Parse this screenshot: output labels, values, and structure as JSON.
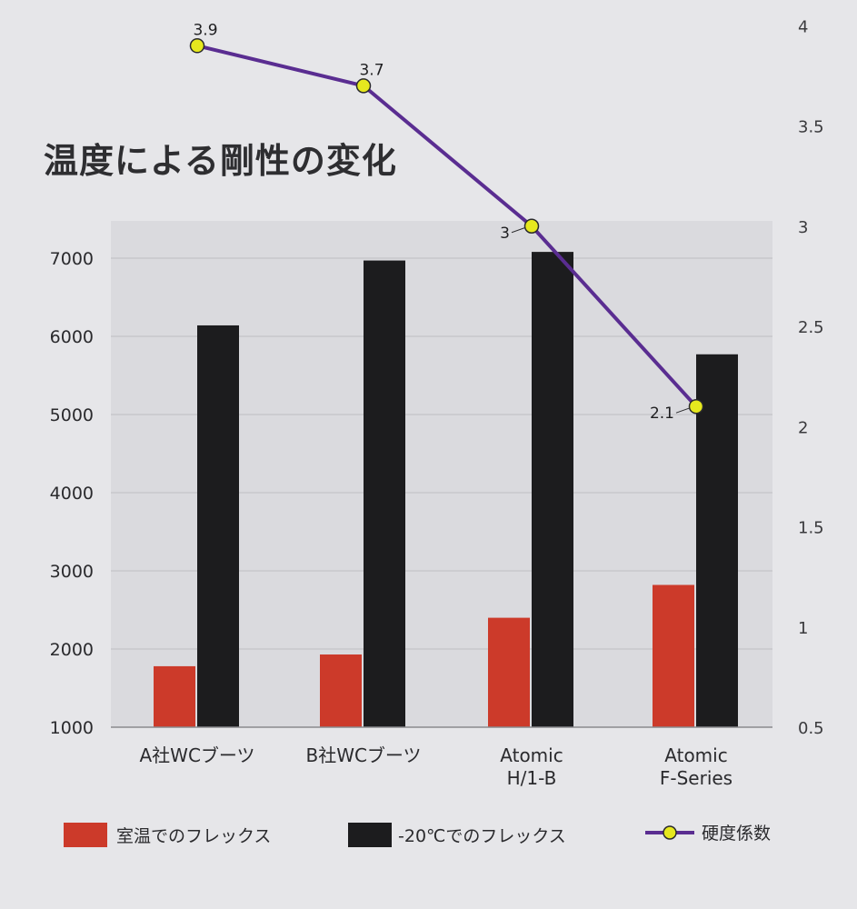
{
  "chart_data": {
    "type": "bar",
    "title": "温度による剛性の変化",
    "categories": [
      [
        "A社WCブーツ"
      ],
      [
        "B社WCブーツ"
      ],
      [
        "Atomic",
        "H/1-B"
      ],
      [
        "Atomic",
        "F-Series"
      ]
    ],
    "y_left": {
      "ticks": [
        "1000",
        "2000",
        "3000",
        "4000",
        "5000",
        "6000",
        "7000"
      ],
      "ylim": [
        1000,
        7500
      ]
    },
    "y_right": {
      "ticks": [
        "0.5",
        "1",
        "1.5",
        "2",
        "2.5",
        "3",
        "3.5",
        "4"
      ],
      "ylim": [
        0.5,
        4.0
      ]
    },
    "series": [
      {
        "name": "室温でのフレックス",
        "kind": "bar",
        "axis": "left",
        "color": "#cc3a2a",
        "values": [
          1780,
          1930,
          2400,
          2820
        ]
      },
      {
        "name": "-20℃でのフレックス",
        "kind": "bar",
        "axis": "left",
        "color": "#1c1c1e",
        "values": [
          6140,
          6970,
          7080,
          5770
        ]
      },
      {
        "name": "硬度係数",
        "kind": "line",
        "axis": "right",
        "color": "#5a2d91",
        "marker_color": "#e6e81e",
        "values": [
          3.9,
          3.7,
          3.0,
          2.1
        ],
        "data_labels": [
          "3.9",
          "3.7",
          "3",
          "2.1"
        ]
      }
    ],
    "grid": true,
    "legend_position": "bottom"
  }
}
